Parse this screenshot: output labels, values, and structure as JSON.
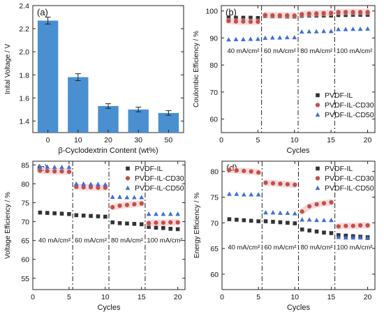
{
  "chart_data": [
    {
      "panel_label": "(a)",
      "type": "bar",
      "xlabel": "β-Cyclodextrin Content (wt%)",
      "ylabel": "Inital Voltage / V",
      "categories": [
        "0",
        "10",
        "20",
        "30",
        "50"
      ],
      "values": [
        2.27,
        1.78,
        1.53,
        1.5,
        1.47
      ],
      "errors": [
        0.03,
        0.03,
        0.02,
        0.02,
        0.02
      ],
      "ylim": [
        1.3,
        2.4
      ],
      "yticks": [
        "1.4",
        "1.6",
        "1.8",
        "2.0",
        "2.2",
        "2.4"
      ],
      "bar_color": "#4a90d0",
      "grid": false
    },
    {
      "panel_label": "(b)",
      "type": "scatter",
      "xlabel": "Cycles",
      "ylabel": "Coulombic Efficiency / %",
      "xlim": [
        0,
        21
      ],
      "ylim": [
        55,
        102
      ],
      "xticks": [
        "0",
        "5",
        "10",
        "15",
        "20"
      ],
      "yticks": [
        "60",
        "70",
        "80",
        "90",
        "100"
      ],
      "x": [
        1,
        2,
        3,
        4,
        5,
        6,
        7,
        8,
        9,
        10,
        11,
        12,
        13,
        14,
        15,
        16,
        17,
        18,
        19,
        20
      ],
      "series": [
        {
          "name": "PVDF-IL",
          "marker": "square",
          "color": "#333333",
          "values": [
            97.6,
            97.5,
            97.5,
            97.5,
            97.4,
            98.1,
            98.0,
            98.0,
            97.9,
            97.9,
            98.2,
            98.3,
            98.3,
            98.3,
            98.3,
            98.5,
            98.5,
            98.6,
            98.6,
            98.6
          ]
        },
        {
          "name": "PVDF-IL-CD30",
          "marker": "circle",
          "color": "#c0504d",
          "values": [
            96.3,
            96.1,
            96.1,
            96.0,
            96.0,
            98.5,
            98.4,
            98.4,
            98.4,
            98.3,
            98.8,
            99.0,
            99.1,
            99.2,
            99.3,
            99.6,
            99.6,
            99.6,
            99.6,
            99.6
          ]
        },
        {
          "name": "PVDF-IL-CD50",
          "marker": "triangle",
          "color": "#3d6fd8",
          "values": [
            89.4,
            89.5,
            89.5,
            89.6,
            89.6,
            90.0,
            90.1,
            90.1,
            90.2,
            90.2,
            92.3,
            92.4,
            92.4,
            92.5,
            92.5,
            93.2,
            93.2,
            93.3,
            93.3,
            93.4
          ]
        }
      ],
      "dividers": [
        5.5,
        10.5,
        15.5
      ],
      "annotations": [
        {
          "text": "40 mA/cm²",
          "x": 3,
          "y": 84.5
        },
        {
          "text": "60 mA/cm²",
          "x": 8,
          "y": 84.5
        },
        {
          "text": "80 mA/cm²",
          "x": 13,
          "y": 84.5
        },
        {
          "text": "100 mA/cm²",
          "x": 18.2,
          "y": 84.5
        }
      ],
      "legend": "bottom-right",
      "grid": false
    },
    {
      "panel_label": "(c)",
      "type": "scatter",
      "xlabel": "Cycles",
      "ylabel": "Voltage Efficiency / %",
      "xlim": [
        0,
        21
      ],
      "ylim": [
        52,
        86
      ],
      "xticks": [
        "0",
        "5",
        "10",
        "15",
        "20"
      ],
      "yticks": [
        "55",
        "60",
        "65",
        "70",
        "75",
        "80",
        "85"
      ],
      "x": [
        1,
        2,
        3,
        4,
        5,
        6,
        7,
        8,
        9,
        10,
        11,
        12,
        13,
        14,
        15,
        16,
        17,
        18,
        19,
        20
      ],
      "series": [
        {
          "name": "PVDF-IL",
          "marker": "square",
          "color": "#333333",
          "values": [
            72.4,
            72.3,
            72.2,
            72.1,
            72.0,
            71.7,
            71.6,
            71.5,
            71.4,
            71.3,
            69.8,
            69.6,
            69.5,
            69.4,
            69.3,
            68.6,
            68.4,
            68.3,
            68.1,
            68.0
          ]
        },
        {
          "name": "PVDF-IL-CD30",
          "marker": "circle",
          "color": "#c0504d",
          "values": [
            83.5,
            83.4,
            83.3,
            83.3,
            83.2,
            79.2,
            79.1,
            79.1,
            79.0,
            79.0,
            73.8,
            74.2,
            74.4,
            74.6,
            74.8,
            69.6,
            69.7,
            69.7,
            69.8,
            69.8
          ]
        },
        {
          "name": "PVDF-IL-CD50",
          "marker": "triangle",
          "color": "#3d6fd8",
          "values": [
            84.5,
            84.5,
            84.4,
            84.4,
            84.4,
            80.0,
            80.0,
            79.9,
            79.9,
            79.8,
            76.5,
            76.5,
            76.4,
            76.4,
            76.4,
            72.0,
            72.0,
            72.0,
            72.0,
            72.0
          ]
        }
      ],
      "dividers": [
        5.5,
        10.5,
        15.5
      ],
      "annotations": [
        {
          "text": "40 mA/cm²",
          "x": 3,
          "y": 64.5
        },
        {
          "text": "60 mA/cm²",
          "x": 8,
          "y": 64.5
        },
        {
          "text": "80 mA/cm²",
          "x": 13,
          "y": 64.5
        },
        {
          "text": "100 mA/cm²",
          "x": 18.2,
          "y": 64.5
        }
      ],
      "legend": "top-right",
      "grid": false
    },
    {
      "panel_label": "(d)",
      "type": "scatter",
      "xlabel": "Cycles",
      "ylabel": "Energy Efficiency / %",
      "xlim": [
        0,
        21
      ],
      "ylim": [
        57,
        82
      ],
      "xticks": [
        "0",
        "5",
        "10",
        "15",
        "20"
      ],
      "yticks": [
        "60",
        "65",
        "70",
        "75",
        "80"
      ],
      "x": [
        1,
        2,
        3,
        4,
        5,
        6,
        7,
        8,
        9,
        10,
        11,
        12,
        13,
        14,
        15,
        16,
        17,
        18,
        19,
        20
      ],
      "series": [
        {
          "name": "PVDF-IL",
          "marker": "square",
          "color": "#333333",
          "values": [
            70.7,
            70.6,
            70.5,
            70.4,
            70.3,
            70.3,
            70.2,
            70.1,
            70.0,
            69.9,
            68.7,
            68.5,
            68.3,
            68.1,
            68.0,
            67.6,
            67.5,
            67.4,
            67.3,
            67.2
          ]
        },
        {
          "name": "PVDF-IL-CD30",
          "marker": "circle",
          "color": "#c0504d",
          "values": [
            80.3,
            80.2,
            80.1,
            80.0,
            79.8,
            77.8,
            77.7,
            77.6,
            77.5,
            77.4,
            72.2,
            73.2,
            73.6,
            73.8,
            74.0,
            69.3,
            69.4,
            69.4,
            69.5,
            69.5
          ]
        },
        {
          "name": "PVDF-IL-CD50",
          "marker": "triangle",
          "color": "#3d6fd8",
          "values": [
            75.6,
            75.6,
            75.5,
            75.5,
            75.5,
            72.0,
            72.0,
            71.9,
            71.9,
            71.8,
            70.6,
            70.6,
            70.5,
            70.5,
            70.5,
            67.2,
            67.1,
            67.1,
            67.1,
            67.0
          ]
        }
      ],
      "dividers": [
        5.5,
        10.5,
        15.5
      ],
      "annotations": [
        {
          "text": "40 mA/cm²",
          "x": 3,
          "y": 64.8
        },
        {
          "text": "60 mA/cm²",
          "x": 8,
          "y": 64.8
        },
        {
          "text": "80 mA/cm²",
          "x": 13,
          "y": 64.8
        },
        {
          "text": "100 mA/cm²",
          "x": 18.2,
          "y": 64.8
        }
      ],
      "legend": "top-right",
      "grid": false
    }
  ]
}
